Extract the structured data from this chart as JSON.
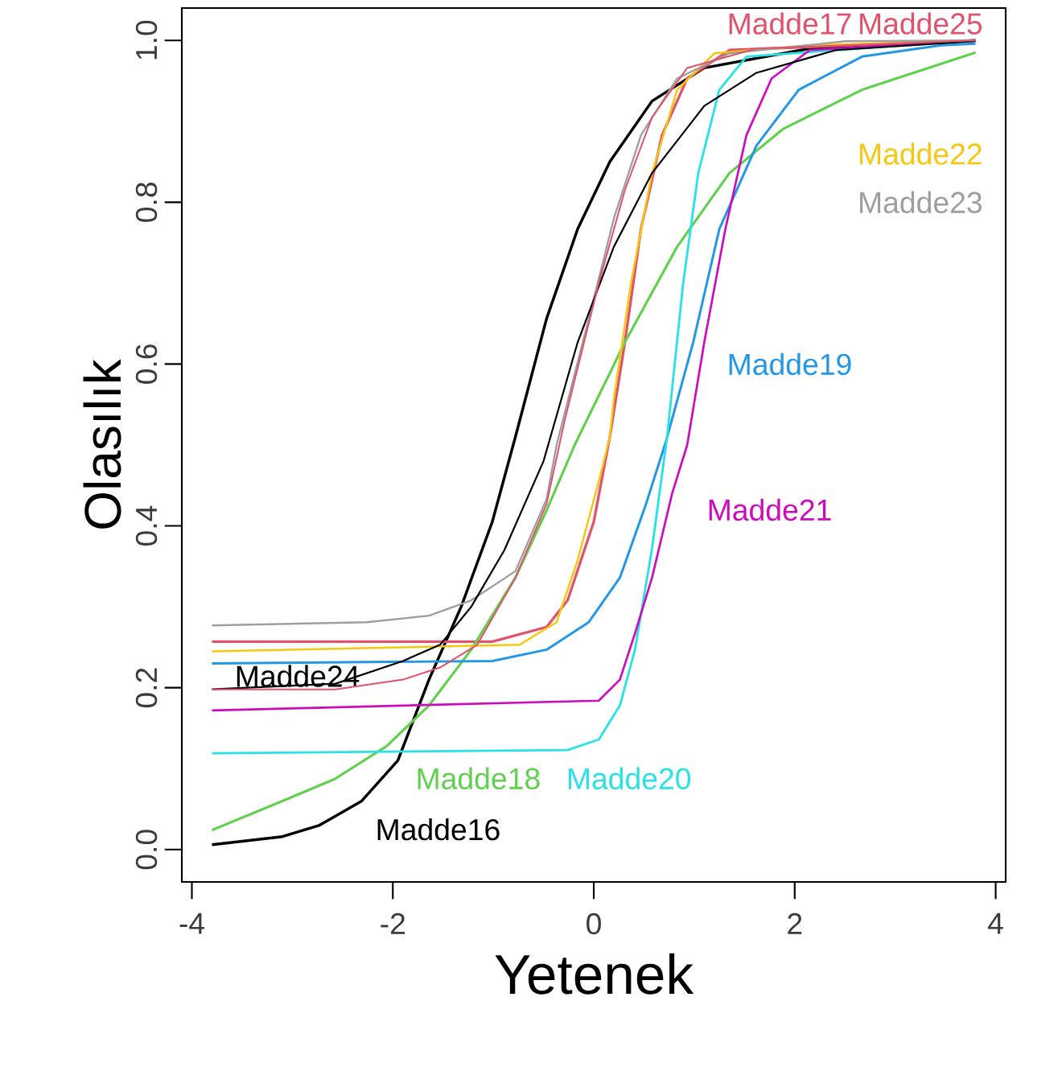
{
  "chart_data": {
    "type": "line",
    "xlabel": "Yetenek",
    "ylabel": "Olasılık",
    "xlim": [
      -4.1,
      4.1
    ],
    "ylim": [
      -0.04,
      1.04
    ],
    "xticks": [
      -4,
      -2,
      0,
      2,
      4
    ],
    "yticks": [
      {
        "value": 0,
        "label": "0.0"
      },
      {
        "value": 0.2,
        "label": "0.2"
      },
      {
        "value": 0.4,
        "label": "0.4"
      },
      {
        "value": 0.6,
        "label": "0.6"
      },
      {
        "value": 0.8,
        "label": "0.8"
      },
      {
        "value": 1,
        "label": "1.0"
      }
    ],
    "grid": false,
    "marker": "none",
    "line_style": "solid",
    "series": [
      {
        "name": "Madde16",
        "color": "#000000",
        "x": [
          -3.8,
          -3.1,
          -2.73,
          -2.31,
          -1.95,
          -1.64,
          -1.32,
          -1.01,
          -0.78,
          -0.47,
          -0.16,
          0.16,
          0.58,
          1.1,
          2.15,
          3.8
        ],
        "values": [
          0.006,
          0.016,
          0.03,
          0.06,
          0.11,
          0.21,
          0.3,
          0.405,
          0.51,
          0.656,
          0.767,
          0.85,
          0.925,
          0.966,
          0.99,
          1.0
        ]
      },
      {
        "name": "Madde17",
        "color": "#DF536B",
        "x": [
          -3.8,
          -1.01,
          -0.47,
          -0.26,
          0,
          0.16,
          0.31,
          0.47,
          0.68,
          0.93,
          1.35,
          3.8
        ],
        "values": [
          0.257,
          0.257,
          0.275,
          0.308,
          0.405,
          0.51,
          0.627,
          0.767,
          0.883,
          0.953,
          0.988,
          1.0
        ]
      },
      {
        "name": "Madde18",
        "color": "#61D04F",
        "x": [
          -3.8,
          -3.1,
          -2.58,
          -2.06,
          -1.64,
          -1.22,
          -0.78,
          -0.47,
          -0.19,
          0.31,
          0.83,
          1.35,
          1.89,
          2.67,
          3.8
        ],
        "values": [
          0.024,
          0.06,
          0.087,
          0.128,
          0.178,
          0.247,
          0.336,
          0.419,
          0.5,
          0.627,
          0.745,
          0.836,
          0.891,
          0.939,
          0.985
        ]
      },
      {
        "name": "Madde19",
        "color": "#2297E6",
        "x": [
          -3.8,
          -1.01,
          -0.47,
          -0.05,
          0.26,
          0.52,
          0.72,
          0.99,
          1.25,
          1.62,
          2.04,
          2.67,
          3.46,
          3.8
        ],
        "values": [
          0.23,
          0.233,
          0.247,
          0.281,
          0.336,
          0.427,
          0.505,
          0.627,
          0.767,
          0.87,
          0.939,
          0.98,
          0.994,
          0.996
        ]
      },
      {
        "name": "Madde20",
        "color": "#28E2E5",
        "x": [
          -3.8,
          -0.26,
          0.05,
          0.26,
          0.41,
          0.58,
          0.73,
          0.89,
          1.04,
          1.25,
          1.52,
          3.8
        ],
        "values": [
          0.119,
          0.123,
          0.136,
          0.178,
          0.247,
          0.372,
          0.51,
          0.7,
          0.836,
          0.939,
          0.98,
          1.0
        ]
      },
      {
        "name": "Madde21",
        "color": "#CD0BBC",
        "x": [
          -3.8,
          0.05,
          0.26,
          0.41,
          0.58,
          0.78,
          0.93,
          1.1,
          1.31,
          1.52,
          1.77,
          2.15,
          3.8
        ],
        "values": [
          0.172,
          0.184,
          0.21,
          0.267,
          0.336,
          0.44,
          0.5,
          0.627,
          0.767,
          0.883,
          0.953,
          0.988,
          1.0
        ]
      },
      {
        "name": "Madde22",
        "color": "#F5C710",
        "x": [
          -3.8,
          -0.74,
          -0.37,
          -0.16,
          0.05,
          0.16,
          0.2,
          0.37,
          0.58,
          0.83,
          1.2,
          2.15,
          3.8
        ],
        "values": [
          0.245,
          0.253,
          0.281,
          0.358,
          0.455,
          0.51,
          0.557,
          0.7,
          0.836,
          0.939,
          0.984,
          0.994,
          1.0
        ]
      },
      {
        "name": "Madde23",
        "color": "#9E9E9E",
        "x": [
          -3.8,
          -2.26,
          -1.64,
          -1.22,
          -0.78,
          -0.47,
          -0.37,
          -0.05,
          0.2,
          0.47,
          0.83,
          1.35,
          2.5,
          3.8
        ],
        "values": [
          0.277,
          0.281,
          0.289,
          0.308,
          0.344,
          0.433,
          0.5,
          0.656,
          0.78,
          0.883,
          0.953,
          0.984,
          0.999,
          1.0
        ]
      },
      {
        "name": "Madde24",
        "color": "#000000",
        "x": [
          -3.8,
          -2.57,
          -1.9,
          -1.53,
          -1.22,
          -0.89,
          -0.5,
          -0.16,
          0.2,
          0.58,
          1.1,
          1.62,
          2.41,
          3.8
        ],
        "values": [
          0.198,
          0.205,
          0.233,
          0.253,
          0.3,
          0.37,
          0.48,
          0.627,
          0.745,
          0.836,
          0.919,
          0.96,
          0.988,
          0.999
        ]
      },
      {
        "name": "Madde25",
        "color": "#DF536B",
        "x": [
          -3.8,
          -2.57,
          -1.9,
          -1.53,
          -1.16,
          -0.78,
          -0.47,
          -0.29,
          0.05,
          0.31,
          0.58,
          0.93,
          1.62,
          3.8
        ],
        "values": [
          0.198,
          0.198,
          0.21,
          0.225,
          0.253,
          0.336,
          0.427,
          0.53,
          0.7,
          0.815,
          0.905,
          0.966,
          0.99,
          1.0
        ]
      }
    ]
  }
}
